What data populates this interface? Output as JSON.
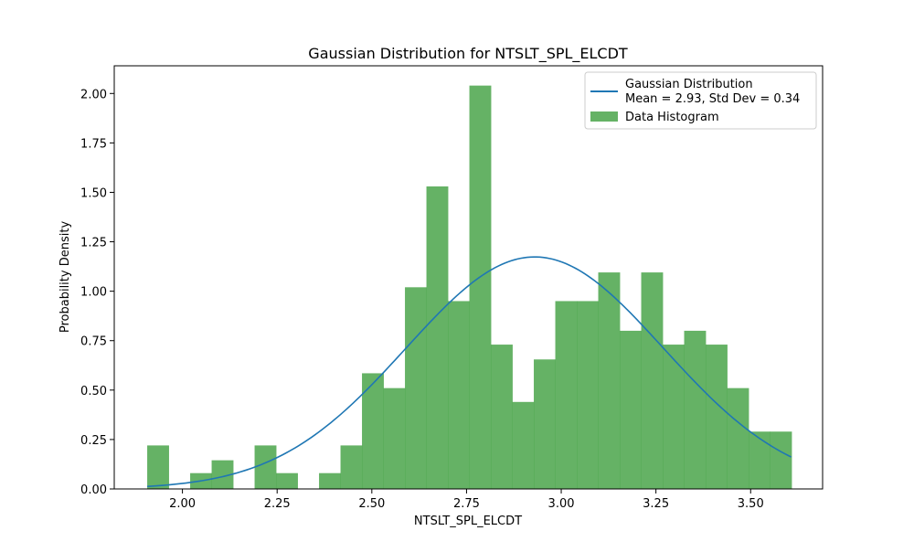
{
  "chart_data": {
    "type": "bar",
    "title": "Gaussian Distribution for NTSLT_SPL_ELCDT",
    "xlabel": "NTSLT_SPL_ELCDT",
    "ylabel": "Probability Density",
    "xlim": [
      1.82,
      3.69
    ],
    "ylim": [
      0.0,
      2.14
    ],
    "grid": false,
    "legend_placement": "top-right",
    "x_ticks": [
      "2.00",
      "2.25",
      "2.50",
      "2.75",
      "3.00",
      "3.25",
      "3.50"
    ],
    "x_tick_values": [
      2.0,
      2.25,
      2.5,
      2.75,
      3.0,
      3.25,
      3.5
    ],
    "y_ticks": [
      "0.00",
      "0.25",
      "0.50",
      "0.75",
      "1.00",
      "1.25",
      "1.50",
      "1.75",
      "2.00"
    ],
    "y_tick_values": [
      0.0,
      0.25,
      0.5,
      0.75,
      1.0,
      1.25,
      1.5,
      1.75,
      2.0
    ],
    "histogram": {
      "name": "Data Histogram",
      "color": "#4aa54a",
      "bin_start": 1.907,
      "bin_width": 0.0567,
      "values": [
        0.22,
        0.0,
        0.08,
        0.145,
        0.0,
        0.22,
        0.08,
        0.0,
        0.08,
        0.22,
        0.585,
        0.51,
        1.02,
        1.53,
        0.95,
        2.04,
        0.73,
        0.44,
        0.655,
        0.95,
        0.95,
        1.095,
        0.8,
        1.095,
        0.73,
        0.8,
        0.73,
        0.51,
        0.29,
        0.29
      ]
    },
    "series": [
      {
        "name": "Gaussian Distribution",
        "name_line2": "Mean = 2.93, Std Dev = 0.34",
        "type": "line",
        "color": "#1f77b4",
        "mean": 2.93,
        "std_dev": 0.34,
        "x_range": [
          1.907,
          3.607
        ]
      }
    ]
  }
}
